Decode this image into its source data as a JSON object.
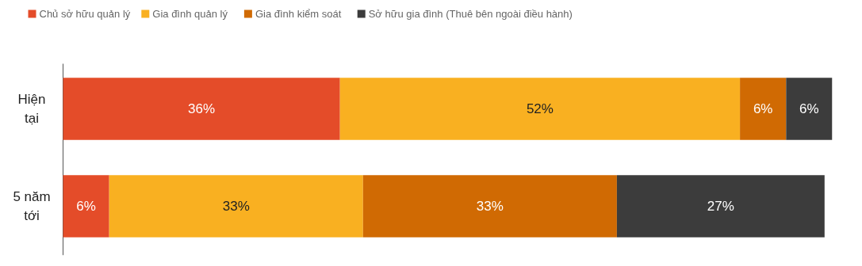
{
  "chart_data": {
    "type": "bar",
    "orientation": "horizontal",
    "stacked": true,
    "legend": "top left",
    "grid": false,
    "categories": [
      "Hiện tại",
      "5 năm tới"
    ],
    "series": [
      {
        "name": "Chủ sở hữu quản lý",
        "color": "#e44c29",
        "values": [
          36,
          6
        ],
        "value_labels": [
          "36%",
          "6%"
        ]
      },
      {
        "name": "Gia đình quản lý",
        "color": "#f9b021",
        "values": [
          52,
          33
        ],
        "value_labels": [
          "52%",
          "33%"
        ]
      },
      {
        "name": "Gia đình kiểm soát",
        "color": "#d06a03",
        "values": [
          6,
          33
        ],
        "value_labels": [
          "6%",
          "33%"
        ]
      },
      {
        "name": "Sở hữu gia đình (Thuê bên ngoài điều hành)",
        "color": "#3c3c3c",
        "values": [
          6,
          27
        ],
        "value_labels": [
          "6%",
          "27%"
        ]
      }
    ]
  }
}
